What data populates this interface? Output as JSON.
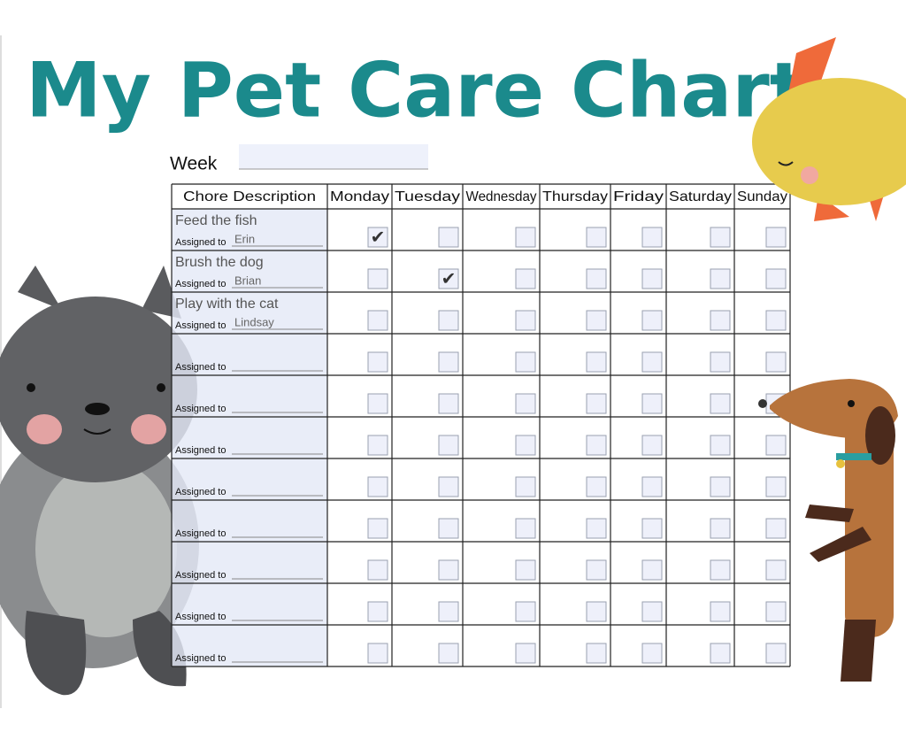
{
  "header": {
    "title": "My Pet Care Chart",
    "week_label": "Week"
  },
  "table": {
    "columns": [
      "Chore Description",
      "Monday",
      "Tuesday",
      "Wednesday",
      "Thursday",
      "Friday",
      "Saturday",
      "Sunday"
    ],
    "assigned_label": "Assigned to",
    "check_symbol": "✔",
    "rows": [
      {
        "chore": "Feed the fish",
        "assignee": "Erin",
        "checks": [
          true,
          false,
          false,
          false,
          false,
          false,
          false
        ]
      },
      {
        "chore": "Brush the dog",
        "assignee": "Brian",
        "checks": [
          false,
          true,
          false,
          false,
          false,
          false,
          false
        ]
      },
      {
        "chore": "Play with the cat",
        "assignee": "Lindsay",
        "checks": [
          false,
          false,
          false,
          false,
          false,
          false,
          false
        ]
      },
      {
        "checks": [
          false,
          false,
          false,
          false,
          false,
          false,
          false
        ]
      },
      {
        "checks": [
          false,
          false,
          false,
          false,
          false,
          false,
          false
        ]
      },
      {
        "checks": [
          false,
          false,
          false,
          false,
          false,
          false,
          false
        ]
      },
      {
        "checks": [
          false,
          false,
          false,
          false,
          false,
          false,
          false
        ]
      },
      {
        "checks": [
          false,
          false,
          false,
          false,
          false,
          false,
          false
        ]
      },
      {
        "checks": [
          false,
          false,
          false,
          false,
          false,
          false,
          false
        ]
      },
      {
        "checks": [
          false,
          false,
          false,
          false,
          false,
          false,
          false
        ]
      },
      {
        "checks": [
          false,
          false,
          false,
          false,
          false,
          false,
          false
        ]
      }
    ]
  }
}
